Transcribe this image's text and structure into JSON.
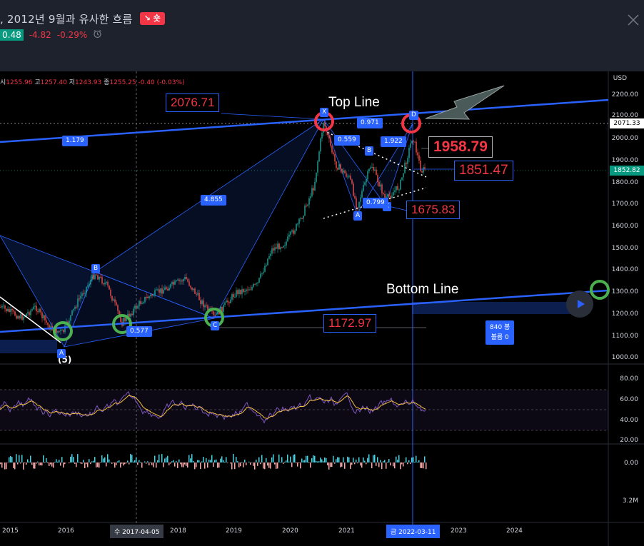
{
  "header": {
    "title": ", 2012년 9월과 유사한 흐름",
    "badge": "↘ 숏",
    "last_price": "0.48",
    "change": "-4.82",
    "change_pct": "-0.29%"
  },
  "ohlc": {
    "o_label": "시",
    "o": "1255.96",
    "h_label": "고",
    "h": "1257.40",
    "l_label": "저",
    "l": "1243.93",
    "c_label": "종",
    "c": "1255.25",
    "chg": "-0.40 (-0.03%)"
  },
  "price_scale": {
    "currency": "USD",
    "labels": [
      "2200.00",
      "2100.00",
      "2000.00",
      "1900.00",
      "1800.00",
      "1700.00",
      "1600.00",
      "1500.00",
      "1400.00",
      "1300.00",
      "1200.00",
      "1100.00",
      "1000.00"
    ],
    "tag_top": "2071.33",
    "tag_current": "1852.82"
  },
  "rsi_scale": [
    "80.00",
    "60.00",
    "40.00",
    "20.00"
  ],
  "osc_scale": [
    "0.00"
  ],
  "vol_scale": [
    "3.2M"
  ],
  "annotations": {
    "top_line": "Top Line",
    "bottom_line": "Bottom Line",
    "tag_2076": "2076.71",
    "tag_1958": "1958.79",
    "tag_1851": "1851.47",
    "tag_1675": "1675.83",
    "tag_1172": "1172.97",
    "wave5": "(5)"
  },
  "pattern_points": [
    "X",
    "B",
    "A",
    "C",
    "D",
    "B",
    "A",
    "C"
  ],
  "ratios": [
    "1.179",
    "4.855",
    "0.577",
    "0.971",
    "0.559",
    "1.922",
    "0.799"
  ],
  "bars_info": {
    "line1": "840 봉",
    "line2": "볼륨 0"
  },
  "time_axis": {
    "years": [
      "2015",
      "2016",
      "2018",
      "2019",
      "2020",
      "2021",
      "2023",
      "2024"
    ],
    "cursor_date": "수 2017-04-05",
    "selected_date": "금 2022-03-11"
  },
  "colors": {
    "bg": "#000000",
    "up": "#26a69a",
    "down": "#ef5350",
    "accent": "#2962ff",
    "red": "#f23645",
    "green": "#089981"
  },
  "icons": {
    "close": "close-icon",
    "clock": "alarm-clock-icon",
    "replay": "play-icon"
  }
}
